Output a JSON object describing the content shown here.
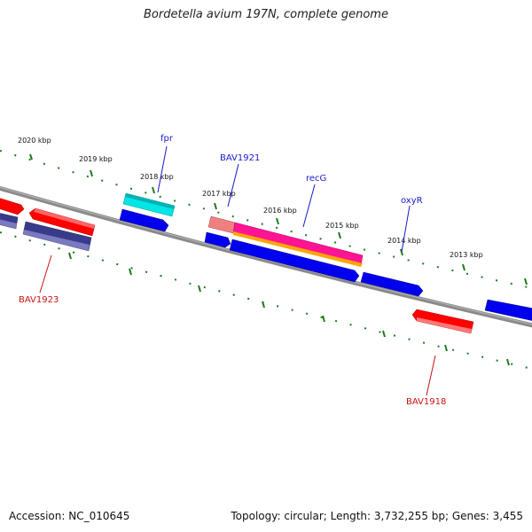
{
  "title": "Bordetella avium 197N, complete genome",
  "footer": {
    "accession": "Accession: NC_010645",
    "summary": "Topology: circular; Length: 3,732,255 bp; Genes: 3,455"
  },
  "colors": {
    "backbone": "#7a7a7a",
    "ticks": "#1f7a1f",
    "tick_label": "#111111",
    "blue_label": "#1a1acc",
    "red_label": "#cc1111"
  },
  "ticks": [
    "2020 kbp",
    "2019 kbp",
    "2018 kbp",
    "2017 kbp",
    "2016 kbp",
    "2015 kbp",
    "2014 kbp",
    "2013 kbp"
  ],
  "gene_labels": [
    {
      "text": "fpr",
      "color": "blue"
    },
    {
      "text": "BAV1921",
      "color": "blue"
    },
    {
      "text": "recG",
      "color": "blue"
    },
    {
      "text": "oxyR",
      "color": "blue"
    },
    {
      "text": "BAV1923",
      "color": "red"
    },
    {
      "text": "BAV1918",
      "color": "red"
    }
  ]
}
